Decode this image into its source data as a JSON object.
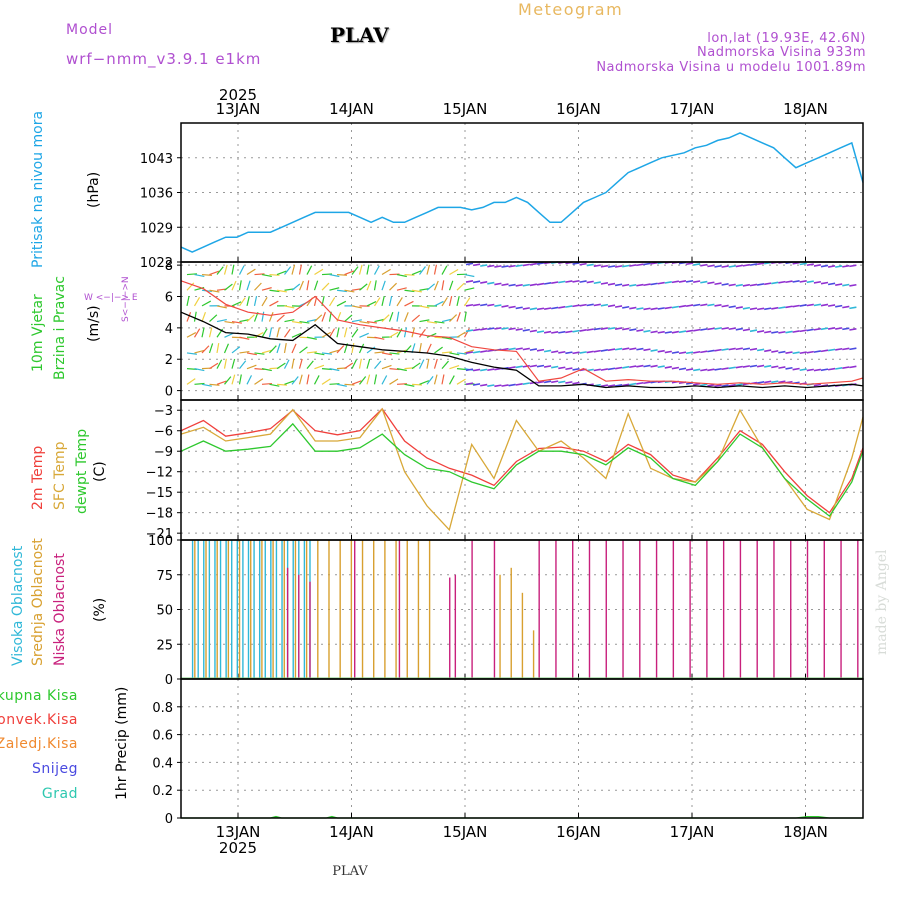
{
  "header": {
    "model_label": "Model",
    "model_name": "wrf−nmm_v3.9.1  e1km",
    "station": "PLAV",
    "title": "Meteogram",
    "lonlat": "lon,lat (19.93E, 42.6N)",
    "elevation": "Nadmorska Visina 933m",
    "model_elevation": "Nadmorska Visina u modelu 1001.89m"
  },
  "time_axis": {
    "year": "2025",
    "dates": [
      "13JAN",
      "14JAN",
      "15JAN",
      "16JAN",
      "17JAN",
      "18JAN"
    ]
  },
  "footer": {
    "station": "PLAV",
    "credit": "made by Angel"
  },
  "colors": {
    "pressure": "#1ea6e6",
    "temp2m": "#f0403c",
    "sfc_temp": "#d8a838",
    "dewpoint": "#2ec82e",
    "high_cloud": "#30b8d8",
    "mid_cloud": "#d8a030",
    "low_cloud": "#c8207c",
    "wind_speed": "#000000",
    "gust": "#f04840",
    "total_precip": "#2ec82e",
    "conv_precip": "#f0403c",
    "freezing": "#f08a30",
    "snow": "#4a4ae0",
    "hail": "#2ec8b0",
    "purple_label": "#b050d0",
    "title_color": "#e8b860"
  },
  "chart_data": [
    {
      "id": "pressure",
      "type": "line",
      "ylabel_a": "Pritisak na nivou mora",
      "ylabel_b": "(hPa)",
      "ylim": [
        1022,
        1050
      ],
      "yticks": [
        "1043",
        "1036",
        "1029",
        "1022"
      ],
      "yticks_values": [
        1043,
        1036,
        1029,
        1022
      ],
      "x_days": [
        0,
        0.1,
        0.2,
        0.3,
        0.4,
        0.5,
        0.6,
        0.7,
        0.8,
        0.9,
        1.0,
        1.1,
        1.2,
        1.3,
        1.4,
        1.5,
        1.6,
        1.7,
        1.8,
        1.9,
        2.0,
        2.1,
        2.2,
        2.3,
        2.4,
        2.5,
        2.6,
        2.7,
        2.8,
        2.9,
        3.0,
        3.1,
        3.2,
        3.3,
        3.4,
        3.5,
        3.6,
        3.7,
        3.8,
        3.9,
        4.0,
        4.1,
        4.2,
        4.3,
        4.4,
        4.5,
        4.6,
        4.7,
        4.8,
        4.9,
        5.0,
        5.1,
        5.2,
        5.3,
        5.4,
        5.5,
        5.6,
        5.7,
        5.8,
        5.9,
        6.0,
        6.1
      ],
      "values": [
        1025,
        1024,
        1025,
        1026,
        1027,
        1027,
        1028,
        1028,
        1028,
        1029,
        1030,
        1031,
        1032,
        1032,
        1032,
        1032,
        1031,
        1030,
        1031,
        1030,
        1030,
        1031,
        1032,
        1033,
        1033,
        1033,
        1032.5,
        1033,
        1034,
        1034,
        1035,
        1034,
        1032,
        1030,
        1030,
        1032,
        1034,
        1035,
        1036,
        1038,
        1040,
        1041,
        1042,
        1043,
        1043.5,
        1044,
        1045,
        1045.5,
        1046.5,
        1047,
        1048,
        1047,
        1046,
        1045,
        1043,
        1041,
        1042,
        1043,
        1044,
        1045,
        1046,
        1038
      ]
    },
    {
      "id": "wind",
      "type": "line",
      "ylabel_a": "10m Vjetar",
      "ylabel_b": "Brzina i Pravac",
      "ylabel_c": "(m/s)",
      "compass": "W  <−|−>  E",
      "compass_v": "S<−|−>N",
      "ylim": [
        -0.6,
        8.2
      ],
      "yticks": [
        "8",
        "6",
        "4",
        "2",
        "0"
      ],
      "yticks_values": [
        8,
        6,
        4,
        2,
        0
      ],
      "x_days": [
        0,
        0.2,
        0.4,
        0.6,
        0.8,
        1.0,
        1.2,
        1.4,
        1.6,
        1.8,
        2.0,
        2.2,
        2.4,
        2.6,
        2.8,
        3.0,
        3.2,
        3.4,
        3.6,
        3.8,
        4.0,
        4.2,
        4.4,
        4.6,
        4.8,
        5.0,
        5.2,
        5.4,
        5.6,
        5.8,
        6.0,
        6.1
      ],
      "speed": [
        5.0,
        4.4,
        3.7,
        3.6,
        3.3,
        3.2,
        4.2,
        3.0,
        2.8,
        2.6,
        2.5,
        2.4,
        2.2,
        1.8,
        1.5,
        1.3,
        0.3,
        0.3,
        0.4,
        0.2,
        0.3,
        0.2,
        0.2,
        0.3,
        0.2,
        0.3,
        0.2,
        0.3,
        0.2,
        0.3,
        0.4,
        0.3
      ],
      "gust": [
        7.0,
        6.5,
        5.5,
        5.0,
        4.8,
        5.0,
        6.0,
        4.5,
        4.2,
        4.0,
        3.8,
        3.5,
        3.4,
        2.8,
        2.6,
        2.5,
        0.6,
        0.8,
        1.4,
        0.6,
        0.7,
        0.6,
        0.6,
        0.5,
        0.4,
        0.5,
        0.4,
        0.5,
        0.4,
        0.5,
        0.6,
        0.8
      ]
    },
    {
      "id": "temperature",
      "type": "line",
      "ylabel_a": "2m Temp",
      "ylabel_b": "SFC Temp",
      "ylabel_c": "dewpt Temp",
      "ylabel_d": "(C)",
      "ylim": [
        -22,
        -1.5
      ],
      "yticks": [
        "−3",
        "−6",
        "−9",
        "−12",
        "−15",
        "−18",
        "−21"
      ],
      "yticks_values": [
        -3,
        -6,
        -9,
        -12,
        -15,
        -18,
        -21
      ],
      "x_days": [
        0,
        0.2,
        0.4,
        0.6,
        0.8,
        1.0,
        1.2,
        1.4,
        1.6,
        1.8,
        2.0,
        2.2,
        2.4,
        2.6,
        2.8,
        3.0,
        3.2,
        3.4,
        3.6,
        3.8,
        4.0,
        4.2,
        4.4,
        4.6,
        4.8,
        5.0,
        5.2,
        5.4,
        5.6,
        5.8,
        6.0,
        6.1
      ],
      "series": [
        {
          "name": "2m Temp",
          "color_key": "temp2m",
          "values": [
            -6.0,
            -4.5,
            -6.8,
            -6.3,
            -5.7,
            -3.0,
            -6.0,
            -6.6,
            -6.0,
            -2.8,
            -7.5,
            -10.0,
            -11.5,
            -12.5,
            -14.0,
            -10.5,
            -8.6,
            -8.4,
            -9.0,
            -10.5,
            -8.0,
            -9.5,
            -12.5,
            -13.5,
            -10.0,
            -6.0,
            -8.0,
            -12.0,
            -15.5,
            -18.0,
            -13.0,
            -8.5
          ]
        },
        {
          "name": "SFC Temp",
          "color_key": "sfc_temp",
          "values": [
            -6.5,
            -5.5,
            -7.5,
            -7.0,
            -6.5,
            -2.9,
            -7.5,
            -7.5,
            -7.0,
            -2.8,
            -12.0,
            -17.0,
            -20.5,
            -8.0,
            -13.0,
            -4.5,
            -9.0,
            -7.5,
            -10.0,
            -13.0,
            -3.5,
            -11.5,
            -13.0,
            -13.5,
            -10.5,
            -3.0,
            -8.5,
            -13.0,
            -17.5,
            -19.0,
            -10.0,
            -4.0
          ]
        },
        {
          "name": "dewpt Temp",
          "color_key": "dewpoint",
          "values": [
            -9.0,
            -7.5,
            -9.0,
            -8.7,
            -8.3,
            -5.0,
            -9.0,
            -9.0,
            -8.5,
            -6.5,
            -9.5,
            -11.5,
            -12.0,
            -13.5,
            -14.5,
            -11.0,
            -9.0,
            -9.0,
            -9.5,
            -11.0,
            -8.5,
            -10.0,
            -13.0,
            -14.0,
            -10.5,
            -6.5,
            -8.5,
            -13.0,
            -16.0,
            -18.5,
            -13.5,
            -9.0
          ]
        }
      ]
    },
    {
      "id": "clouds",
      "type": "bar",
      "ylabel_a": "Visoka Oblacnost",
      "ylabel_b": "Srednja Oblacnost",
      "ylabel_c": "Niska Oblacnost",
      "ylabel_d": "(%)",
      "ylim": [
        0,
        100
      ],
      "yticks": [
        "100",
        "75",
        "50",
        "25",
        "0"
      ],
      "yticks_values": [
        100,
        75,
        50,
        25,
        0
      ],
      "high_x": [
        0.05,
        0.1,
        0.15,
        0.2,
        0.25,
        0.3,
        0.35,
        0.4,
        0.45,
        0.5,
        0.55,
        0.6,
        0.65,
        0.7,
        0.75,
        0.8,
        0.85,
        0.9,
        0.95,
        1.0,
        1.05,
        1.1
      ],
      "high_v": [
        100,
        100,
        100,
        100,
        100,
        100,
        100,
        100,
        100,
        100,
        100,
        100,
        100,
        100,
        100,
        100,
        100,
        100,
        100,
        100,
        100,
        100
      ],
      "mid_x": [
        0.07,
        0.17,
        0.27,
        0.37,
        0.47,
        0.57,
        0.67,
        0.77,
        0.87,
        0.97,
        1.07,
        1.17,
        1.27,
        1.37,
        1.47,
        1.57,
        1.67,
        1.77,
        1.87,
        1.97,
        2.07,
        2.17,
        2.8,
        2.9,
        3.0,
        3.1
      ],
      "mid_v": [
        100,
        100,
        100,
        100,
        100,
        100,
        100,
        100,
        100,
        100,
        100,
        100,
        100,
        100,
        100,
        100,
        100,
        100,
        100,
        100,
        100,
        100,
        75,
        80,
        62,
        35
      ],
      "low_x": [
        0.9,
        1.0,
        1.1,
        1.5,
        1.9,
        2.35,
        2.4,
        2.55,
        2.75,
        3.15,
        3.3,
        3.45,
        3.6,
        3.75,
        3.9,
        4.05,
        4.2,
        4.35,
        4.5,
        4.65,
        4.8,
        4.95,
        5.1,
        5.25,
        5.4,
        5.55,
        5.7,
        5.85,
        6.0
      ],
      "low_v": [
        80,
        75,
        70,
        100,
        100,
        73,
        75,
        100,
        100,
        100,
        100,
        100,
        100,
        100,
        100,
        100,
        100,
        100,
        100,
        100,
        100,
        100,
        100,
        100,
        100,
        100,
        100,
        100,
        100
      ]
    },
    {
      "id": "precip",
      "type": "line",
      "ylabel_a": "1hr Precip (mm)",
      "legend": [
        "Ukupna Kisa",
        "Konvek.Kisa",
        "Zaledj.Kisa",
        "Snijeg",
        "Grad"
      ],
      "ylim": [
        0,
        1.0
      ],
      "yticks": [
        "0.8",
        "0.6",
        "0.4",
        "0.2",
        "0"
      ],
      "yticks_values": [
        0.8,
        0.6,
        0.4,
        0.2,
        0
      ],
      "x_days": [
        0,
        0.8,
        0.85,
        0.9,
        1.3,
        1.35,
        1.4,
        5.5,
        5.6,
        5.7,
        5.8,
        6.1
      ],
      "values": [
        0,
        0,
        0.01,
        0,
        0,
        0.01,
        0,
        0,
        0.01,
        0.01,
        0,
        0
      ]
    }
  ]
}
